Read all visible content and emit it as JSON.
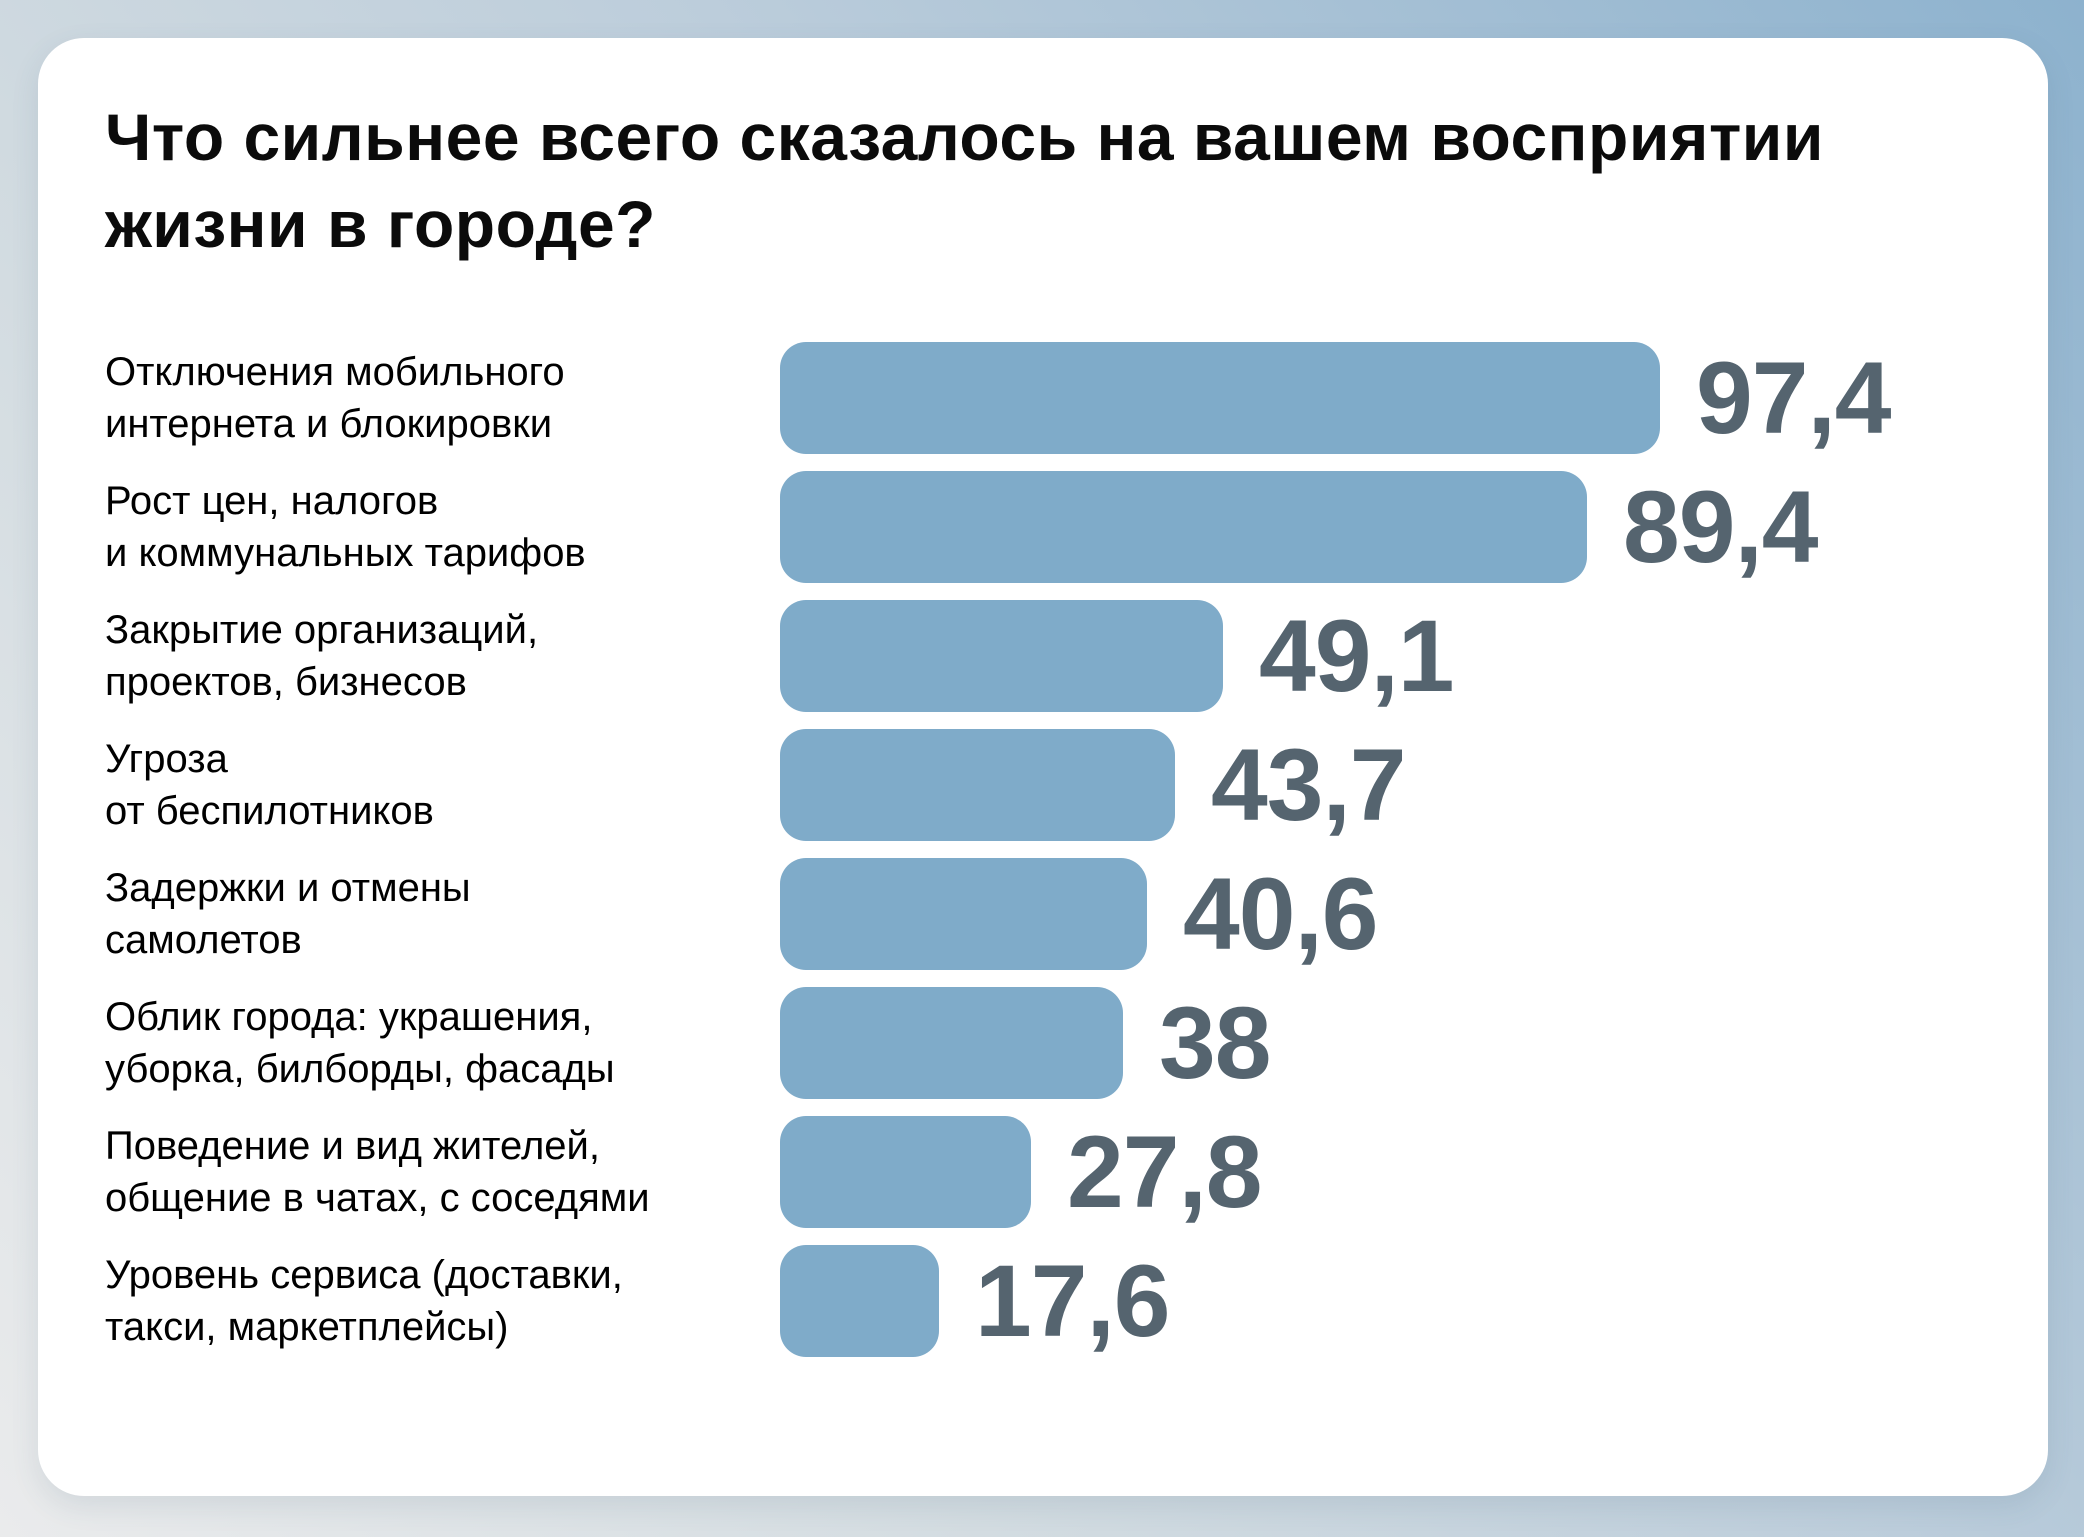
{
  "chart_data": {
    "type": "bar",
    "orientation": "horizontal",
    "title": "Что сильнее всего сказалось на вашем восприятии\nжизни в городе?",
    "categories": [
      "Отключения мобильного интернета и блокировки",
      "Рост цен, налогов и коммунальных тарифов",
      "Закрытие организаций, проектов, бизнесов",
      "Угроза от беспилотников",
      "Задержки и отмены самолетов",
      "Облик города: украшения, уборка, билборды, фасады",
      "Поведение и вид жителей, общение в чатах, с соседями",
      "Уровень сервиса (доставки, такси, маркетплейсы)"
    ],
    "values": [
      97.4,
      89.4,
      49.1,
      43.7,
      40.6,
      38,
      27.8,
      17.6
    ],
    "xlim": [
      0,
      100
    ],
    "grid": false,
    "legend": false,
    "bar_color": "#7fabc9",
    "value_color": "#55646f",
    "rows": [
      {
        "label": "Отключения мобильного\nинтернета и блокировки",
        "value": 97.4,
        "value_label": "97,4"
      },
      {
        "label": "Рост цен, налогов\nи коммунальных тарифов",
        "value": 89.4,
        "value_label": "89,4"
      },
      {
        "label": "Закрытие организаций,\nпроектов, бизнесов",
        "value": 49.1,
        "value_label": "49,1"
      },
      {
        "label": "Угроза\nот беспилотников",
        "value": 43.7,
        "value_label": "43,7"
      },
      {
        "label": "Задержки и отмены\nсамолетов",
        "value": 40.6,
        "value_label": "40,6"
      },
      {
        "label": "Облик города: украшения,\nуборка, билборды, фасады",
        "value": 38,
        "value_label": "38"
      },
      {
        "label": "Поведение и вид жителей,\nобщение в чатах, с соседями",
        "value": 27.8,
        "value_label": "27,8"
      },
      {
        "label": "Уровень сервиса (доставки,\nтакси, маркетплейсы)",
        "value": 17.6,
        "value_label": "17,6"
      }
    ]
  },
  "colors": {
    "background_gradient_start": "#eaebec",
    "background_gradient_end": "#8db2ce",
    "card_background": "#ffffff",
    "title_text": "#0b0b0b",
    "label_text": "#000000",
    "bar_fill": "#7fabc9",
    "value_text": "#55646f"
  }
}
